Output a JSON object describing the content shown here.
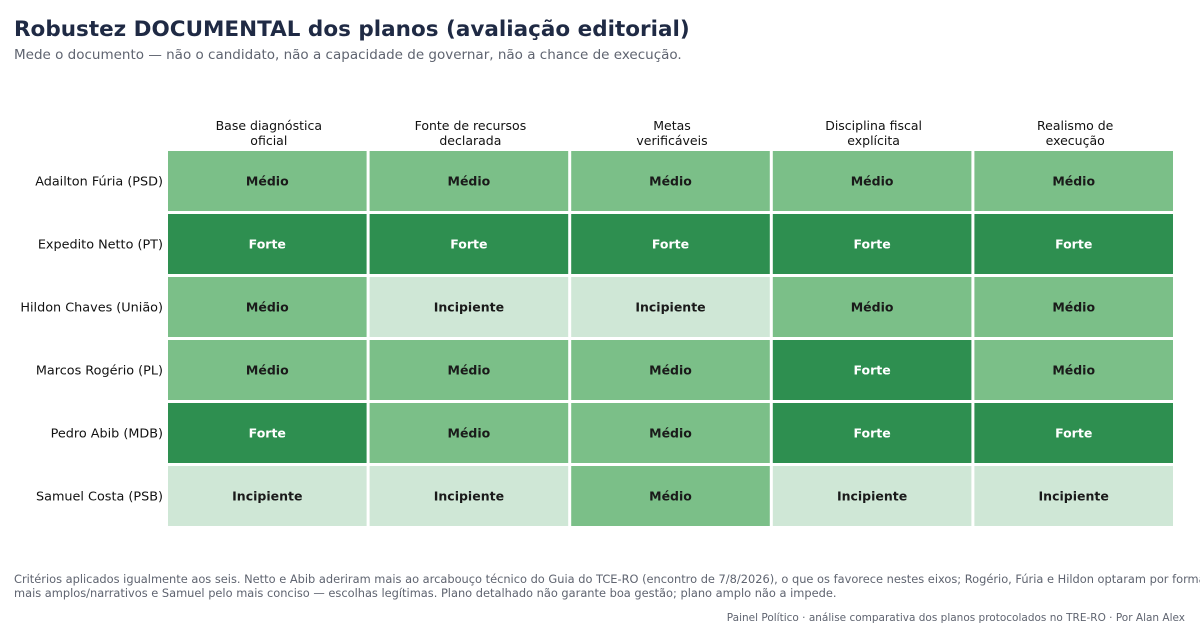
{
  "header": {
    "title": "Robustez DOCUMENTAL dos planos (avaliação editorial)",
    "subtitle": "Mede o documento — não o candidato, não a capacidade de governar, não a chance de execução."
  },
  "chart_data": {
    "type": "heatmap",
    "title": "Robustez DOCUMENTAL dos planos (avaliação editorial)",
    "columns": [
      [
        "Base diagnóstica",
        "oficial"
      ],
      [
        "Fonte de recursos",
        "declarada"
      ],
      [
        "Metas",
        "verificáveis"
      ],
      [
        "Disciplina fiscal",
        "explícita"
      ],
      [
        "Realismo de",
        "execução"
      ]
    ],
    "rows": [
      "Adailton Fúria (PSD)",
      "Expedito Netto (PT)",
      "Hildon Chaves (União)",
      "Marcos Rogério (PL)",
      "Pedro Abib (MDB)",
      "Samuel Costa (PSB)"
    ],
    "values": [
      [
        "Médio",
        "Médio",
        "Médio",
        "Médio",
        "Médio"
      ],
      [
        "Forte",
        "Forte",
        "Forte",
        "Forte",
        "Forte"
      ],
      [
        "Médio",
        "Incipiente",
        "Incipiente",
        "Médio",
        "Médio"
      ],
      [
        "Médio",
        "Médio",
        "Médio",
        "Forte",
        "Médio"
      ],
      [
        "Forte",
        "Médio",
        "Médio",
        "Forte",
        "Forte"
      ],
      [
        "Incipiente",
        "Incipiente",
        "Médio",
        "Incipiente",
        "Incipiente"
      ]
    ],
    "scale": [
      "Incipiente",
      "Médio",
      "Forte"
    ],
    "colors": {
      "Forte": "#2e8f50",
      "Médio": "#7bbf88",
      "Incipiente": "#cfe7d6"
    },
    "text_colors": {
      "Forte": "#ffffff",
      "Médio": "#1a1a1a",
      "Incipiente": "#1a1a1a"
    },
    "grid": false,
    "legend": "none"
  },
  "footer": {
    "note_line1": "Critérios aplicados igualmente aos seis. Netto e Abib aderiram mais ao arcabouço técnico do Guia do TCE-RO (encontro de 7/8/2026), o que os favorece nestes eixos; Rogério, Fúria e Hildon optaram por formatos",
    "note_line2": "mais amplos/narrativos e Samuel pelo mais conciso — escolhas legítimas. Plano detalhado não garante boa gestão; plano amplo não a impede.",
    "credit": "Painel Político · análise comparativa dos planos protocolados no TRE-RO · Por Alan Alex"
  }
}
